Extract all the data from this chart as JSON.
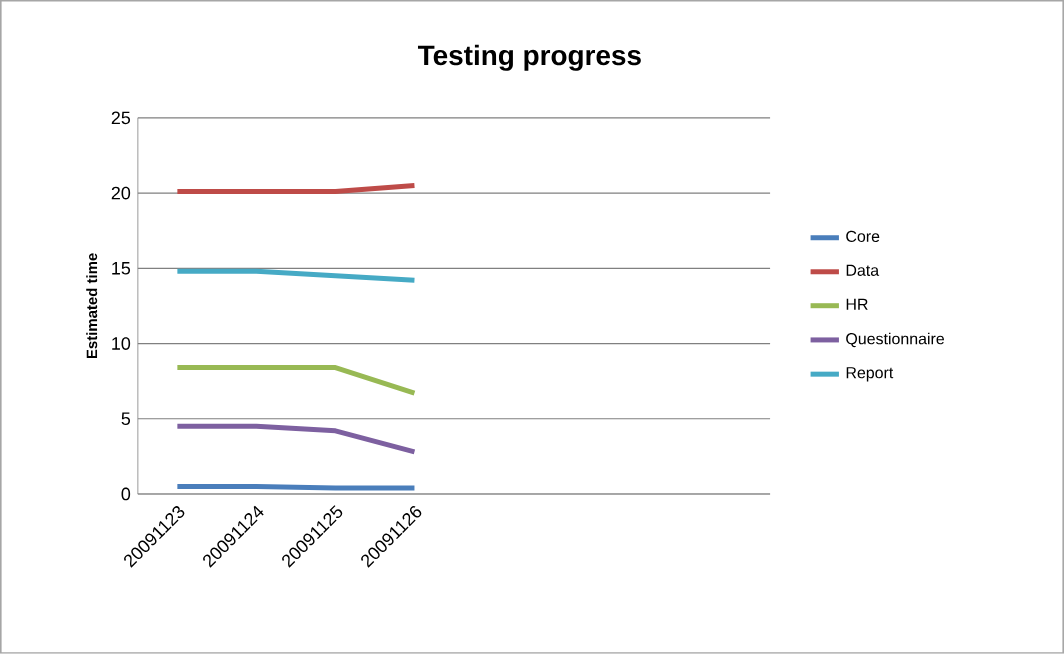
{
  "chart_data": {
    "type": "line",
    "title": "Testing progress",
    "ylabel": "Estimated time",
    "categories": [
      "20091123",
      "20091124",
      "20091125",
      "20091126",
      null,
      null,
      null,
      null
    ],
    "series": [
      {
        "name": "Core",
        "color": "#4a7ebb",
        "values": [
          0.5,
          0.5,
          0.4,
          0.4,
          null,
          null,
          null,
          null
        ]
      },
      {
        "name": "Data",
        "color": "#be4b48",
        "values": [
          20.1,
          20.1,
          20.1,
          20.5,
          null,
          null,
          null,
          null
        ]
      },
      {
        "name": "HR",
        "color": "#98b954",
        "values": [
          8.4,
          8.4,
          8.4,
          6.7,
          null,
          null,
          null,
          null
        ]
      },
      {
        "name": "Questionnaire",
        "color": "#7d60a0",
        "values": [
          4.5,
          4.5,
          4.2,
          2.8,
          null,
          null,
          null,
          null
        ]
      },
      {
        "name": "Report",
        "color": "#46aac5",
        "values": [
          14.8,
          14.8,
          14.5,
          14.2,
          null,
          null,
          null,
          null
        ]
      }
    ],
    "ylim": [
      0,
      25
    ],
    "yticks": [
      0,
      5,
      10,
      15,
      20,
      25
    ],
    "grid": "y",
    "legend": "right",
    "marker": "none",
    "line_style": "solid"
  }
}
